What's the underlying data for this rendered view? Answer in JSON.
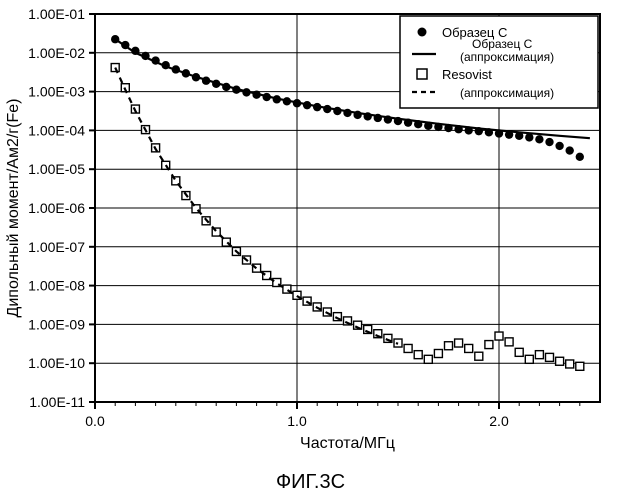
{
  "caption": "ФИГ.3C",
  "chart": {
    "type": "line-scatter-log",
    "font_family": "Arial, sans-serif",
    "background_color": "#ffffff",
    "plot_border_color": "#000000",
    "grid_color": "#000000",
    "grid_width": 1,
    "xlabel": "Частота/МГц",
    "ylabel": "Дипольный момент/Ам2/г(Fe)",
    "label_fontsize": 16,
    "tick_fontsize": 14,
    "xlim": [
      0.0,
      2.5
    ],
    "xticks": [
      0.0,
      1.0,
      2.0
    ],
    "minor_xticks": [
      0.1,
      0.2,
      0.3,
      0.4,
      0.5,
      0.6,
      0.7,
      0.8,
      0.9,
      1.1,
      1.2,
      1.3,
      1.4,
      1.5,
      1.6,
      1.7,
      1.8,
      1.9,
      2.1,
      2.2,
      2.3,
      2.4
    ],
    "ylim_exp": [
      -11,
      -1
    ],
    "yticks_labels": [
      "1.00E-11",
      "1.00E-10",
      "1.00E-09",
      "1.00E-08",
      "1.00E-07",
      "1.00E-06",
      "1.00E-05",
      "1.00E-04",
      "1.00E-03",
      "1.00E-02",
      "1.00E-01"
    ],
    "yticks_exp": [
      -11,
      -10,
      -9,
      -8,
      -7,
      -6,
      -5,
      -4,
      -3,
      -2,
      -1
    ],
    "legend": {
      "border_color": "#000000",
      "bg": "#ffffff",
      "fontsize": 13,
      "entries": [
        {
          "marker": "filled-circle",
          "line": "none",
          "label": "Образец C"
        },
        {
          "marker": "none",
          "line": "solid",
          "label_top": "Образец C",
          "label_bottom": "(аппроксимация)"
        },
        {
          "marker": "open-square",
          "line": "none",
          "label": "Resovist"
        },
        {
          "marker": "none",
          "line": "dashed",
          "label_bottom": "(аппроксимация)"
        }
      ]
    },
    "series": [
      {
        "name": "Образец C",
        "type": "scatter",
        "marker": "filled-circle",
        "marker_size": 4.2,
        "color": "#000000",
        "points": [
          [
            0.1,
            -1.65
          ],
          [
            0.15,
            -1.8
          ],
          [
            0.2,
            -1.95
          ],
          [
            0.25,
            -2.08
          ],
          [
            0.3,
            -2.2
          ],
          [
            0.35,
            -2.32
          ],
          [
            0.4,
            -2.43
          ],
          [
            0.45,
            -2.53
          ],
          [
            0.5,
            -2.63
          ],
          [
            0.55,
            -2.72
          ],
          [
            0.6,
            -2.8
          ],
          [
            0.65,
            -2.88
          ],
          [
            0.7,
            -2.95
          ],
          [
            0.75,
            -3.02
          ],
          [
            0.8,
            -3.08
          ],
          [
            0.85,
            -3.14
          ],
          [
            0.9,
            -3.2
          ],
          [
            0.95,
            -3.25
          ],
          [
            1.0,
            -3.3
          ],
          [
            1.05,
            -3.35
          ],
          [
            1.1,
            -3.4
          ],
          [
            1.15,
            -3.45
          ],
          [
            1.2,
            -3.5
          ],
          [
            1.25,
            -3.55
          ],
          [
            1.3,
            -3.6
          ],
          [
            1.35,
            -3.64
          ],
          [
            1.4,
            -3.68
          ],
          [
            1.45,
            -3.72
          ],
          [
            1.5,
            -3.76
          ],
          [
            1.55,
            -3.8
          ],
          [
            1.6,
            -3.84
          ],
          [
            1.65,
            -3.88
          ],
          [
            1.7,
            -3.91
          ],
          [
            1.75,
            -3.94
          ],
          [
            1.8,
            -3.97
          ],
          [
            1.85,
            -4.0
          ],
          [
            1.9,
            -4.02
          ],
          [
            1.95,
            -4.05
          ],
          [
            2.0,
            -4.08
          ],
          [
            2.05,
            -4.11
          ],
          [
            2.1,
            -4.14
          ],
          [
            2.15,
            -4.18
          ],
          [
            2.2,
            -4.23
          ],
          [
            2.25,
            -4.3
          ],
          [
            2.3,
            -4.4
          ],
          [
            2.35,
            -4.52
          ],
          [
            2.4,
            -4.68
          ]
        ]
      },
      {
        "name": "Образец C (аппроксимация)",
        "type": "line",
        "dash": "solid",
        "width": 2.2,
        "color": "#000000",
        "points": [
          [
            0.1,
            -1.65
          ],
          [
            0.2,
            -2.0
          ],
          [
            0.35,
            -2.35
          ],
          [
            0.5,
            -2.62
          ],
          [
            0.7,
            -2.93
          ],
          [
            0.9,
            -3.18
          ],
          [
            1.1,
            -3.38
          ],
          [
            1.3,
            -3.55
          ],
          [
            1.5,
            -3.7
          ],
          [
            1.7,
            -3.83
          ],
          [
            1.9,
            -3.95
          ],
          [
            2.1,
            -4.05
          ],
          [
            2.3,
            -4.14
          ],
          [
            2.45,
            -4.2
          ]
        ]
      },
      {
        "name": "Resovist",
        "type": "scatter",
        "marker": "open-square",
        "marker_size": 8,
        "color": "#000000",
        "points": [
          [
            0.1,
            -2.38
          ],
          [
            0.15,
            -2.9
          ],
          [
            0.2,
            -3.45
          ],
          [
            0.25,
            -3.98
          ],
          [
            0.3,
            -4.45
          ],
          [
            0.35,
            -4.9
          ],
          [
            0.4,
            -5.3
          ],
          [
            0.45,
            -5.68
          ],
          [
            0.5,
            -6.02
          ],
          [
            0.55,
            -6.33
          ],
          [
            0.6,
            -6.62
          ],
          [
            0.65,
            -6.88
          ],
          [
            0.7,
            -7.12
          ],
          [
            0.75,
            -7.34
          ],
          [
            0.8,
            -7.55
          ],
          [
            0.85,
            -7.74
          ],
          [
            0.9,
            -7.92
          ],
          [
            0.95,
            -8.09
          ],
          [
            1.0,
            -8.25
          ],
          [
            1.05,
            -8.4
          ],
          [
            1.1,
            -8.55
          ],
          [
            1.15,
            -8.68
          ],
          [
            1.2,
            -8.8
          ],
          [
            1.25,
            -8.91
          ],
          [
            1.3,
            -9.02
          ],
          [
            1.35,
            -9.13
          ],
          [
            1.4,
            -9.24
          ],
          [
            1.45,
            -9.36
          ],
          [
            1.5,
            -9.48
          ],
          [
            1.55,
            -9.62
          ],
          [
            1.6,
            -9.78
          ],
          [
            1.65,
            -9.9
          ],
          [
            1.7,
            -9.75
          ],
          [
            1.75,
            -9.55
          ],
          [
            1.8,
            -9.48
          ],
          [
            1.85,
            -9.62
          ],
          [
            1.9,
            -9.82
          ],
          [
            1.95,
            -9.52
          ],
          [
            2.0,
            -9.3
          ],
          [
            2.05,
            -9.45
          ],
          [
            2.1,
            -9.72
          ],
          [
            2.15,
            -9.9
          ],
          [
            2.2,
            -9.78
          ],
          [
            2.25,
            -9.85
          ],
          [
            2.3,
            -9.95
          ],
          [
            2.35,
            -10.02
          ],
          [
            2.4,
            -10.08
          ]
        ]
      },
      {
        "name": "Resovist (аппроксимация)",
        "type": "line",
        "dash": "6,5",
        "width": 2.2,
        "color": "#000000",
        "points": [
          [
            0.1,
            -2.38
          ],
          [
            0.15,
            -2.95
          ],
          [
            0.2,
            -3.5
          ],
          [
            0.3,
            -4.48
          ],
          [
            0.4,
            -5.3
          ],
          [
            0.5,
            -6.0
          ],
          [
            0.6,
            -6.6
          ],
          [
            0.7,
            -7.12
          ],
          [
            0.8,
            -7.56
          ],
          [
            0.9,
            -7.94
          ],
          [
            1.0,
            -8.27
          ],
          [
            1.1,
            -8.57
          ],
          [
            1.2,
            -8.84
          ],
          [
            1.3,
            -9.08
          ],
          [
            1.4,
            -9.3
          ],
          [
            1.5,
            -9.5
          ]
        ]
      }
    ]
  }
}
